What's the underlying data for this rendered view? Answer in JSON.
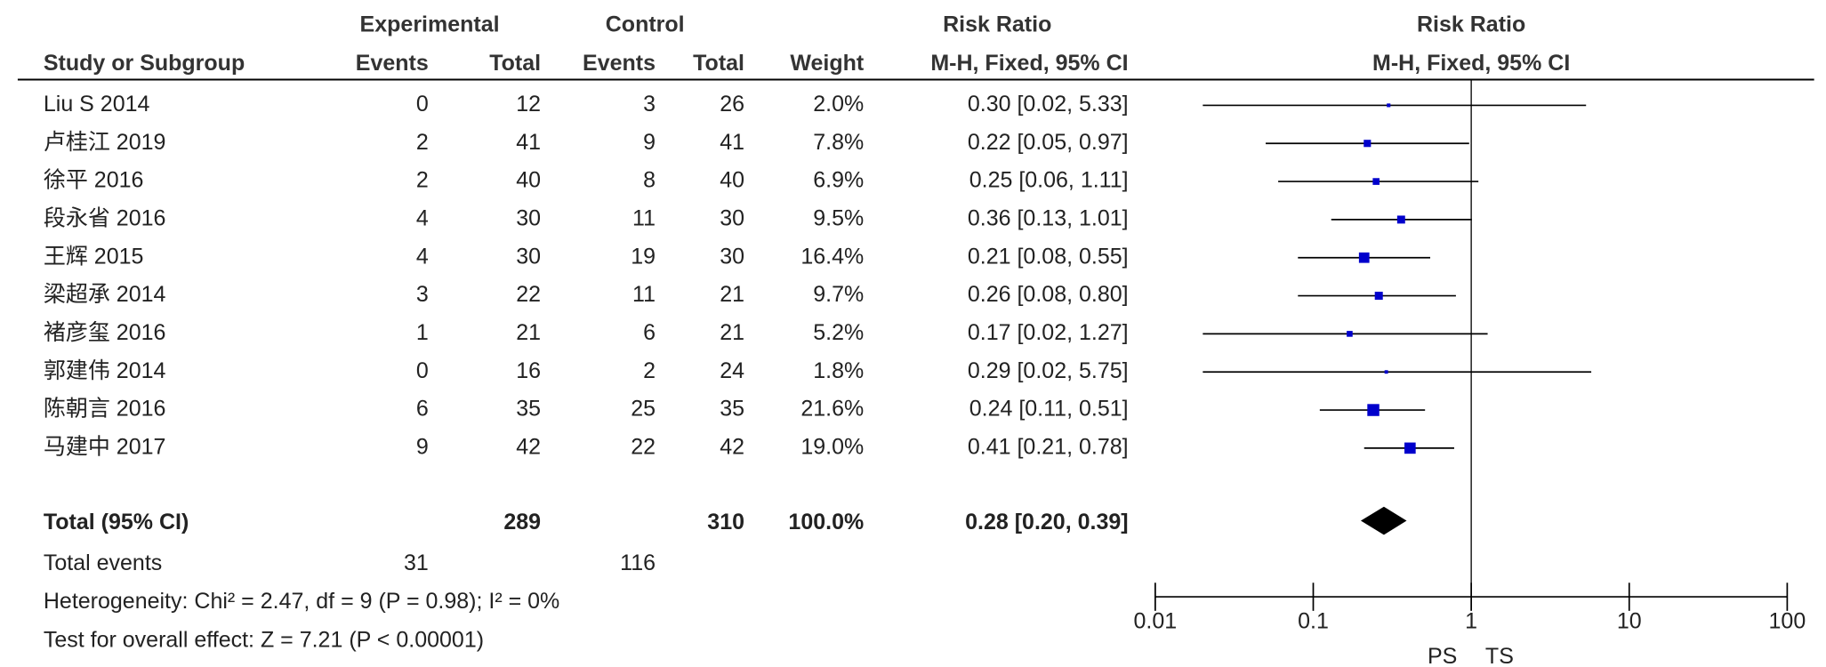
{
  "chart_data": {
    "type": "forest",
    "headers": {
      "experimental": "Experimental",
      "control": "Control",
      "risk_ratio": "Risk Ratio",
      "study": "Study or Subgroup",
      "exp_events": "Events",
      "exp_total": "Total",
      "ctl_events": "Events",
      "ctl_total": "Total",
      "weight": "Weight",
      "method": "M-H, Fixed, 95% CI",
      "plot_title": "Risk Ratio",
      "plot_method": "M-H, Fixed, 95% CI"
    },
    "studies": [
      {
        "name": "Liu S 2014",
        "exp_events": 0,
        "exp_total": 12,
        "ctl_events": 3,
        "ctl_total": 26,
        "weight": 2.0,
        "weight_label": "2.0%",
        "rr": 0.3,
        "lo": 0.02,
        "hi": 5.33,
        "ci_label": "0.30 [0.02, 5.33]"
      },
      {
        "name": "卢桂江 2019",
        "exp_events": 2,
        "exp_total": 41,
        "ctl_events": 9,
        "ctl_total": 41,
        "weight": 7.8,
        "weight_label": "7.8%",
        "rr": 0.22,
        "lo": 0.05,
        "hi": 0.97,
        "ci_label": "0.22 [0.05, 0.97]"
      },
      {
        "name": "徐平 2016",
        "exp_events": 2,
        "exp_total": 40,
        "ctl_events": 8,
        "ctl_total": 40,
        "weight": 6.9,
        "weight_label": "6.9%",
        "rr": 0.25,
        "lo": 0.06,
        "hi": 1.11,
        "ci_label": "0.25 [0.06, 1.11]"
      },
      {
        "name": "段永省 2016",
        "exp_events": 4,
        "exp_total": 30,
        "ctl_events": 11,
        "ctl_total": 30,
        "weight": 9.5,
        "weight_label": "9.5%",
        "rr": 0.36,
        "lo": 0.13,
        "hi": 1.01,
        "ci_label": "0.36 [0.13, 1.01]"
      },
      {
        "name": "王辉 2015",
        "exp_events": 4,
        "exp_total": 30,
        "ctl_events": 19,
        "ctl_total": 30,
        "weight": 16.4,
        "weight_label": "16.4%",
        "rr": 0.21,
        "lo": 0.08,
        "hi": 0.55,
        "ci_label": "0.21 [0.08, 0.55]"
      },
      {
        "name": "梁超承 2014",
        "exp_events": 3,
        "exp_total": 22,
        "ctl_events": 11,
        "ctl_total": 21,
        "weight": 9.7,
        "weight_label": "9.7%",
        "rr": 0.26,
        "lo": 0.08,
        "hi": 0.8,
        "ci_label": "0.26 [0.08, 0.80]"
      },
      {
        "name": "褚彦玺 2016",
        "exp_events": 1,
        "exp_total": 21,
        "ctl_events": 6,
        "ctl_total": 21,
        "weight": 5.2,
        "weight_label": "5.2%",
        "rr": 0.17,
        "lo": 0.02,
        "hi": 1.27,
        "ci_label": "0.17 [0.02, 1.27]"
      },
      {
        "name": "郭建伟 2014",
        "exp_events": 0,
        "exp_total": 16,
        "ctl_events": 2,
        "ctl_total": 24,
        "weight": 1.8,
        "weight_label": "1.8%",
        "rr": 0.29,
        "lo": 0.02,
        "hi": 5.75,
        "ci_label": "0.29 [0.02, 5.75]"
      },
      {
        "name": "陈朝言 2016",
        "exp_events": 6,
        "exp_total": 35,
        "ctl_events": 25,
        "ctl_total": 35,
        "weight": 21.6,
        "weight_label": "21.6%",
        "rr": 0.24,
        "lo": 0.11,
        "hi": 0.51,
        "ci_label": "0.24 [0.11, 0.51]"
      },
      {
        "name": "马建中 2017",
        "exp_events": 9,
        "exp_total": 42,
        "ctl_events": 22,
        "ctl_total": 42,
        "weight": 19.0,
        "weight_label": "19.0%",
        "rr": 0.41,
        "lo": 0.21,
        "hi": 0.78,
        "ci_label": "0.41 [0.21, 0.78]"
      }
    ],
    "total": {
      "name": "Total (95% CI)",
      "exp_total": 289,
      "ctl_total": 310,
      "weight": 100.0,
      "weight_label": "100.0%",
      "rr": 0.28,
      "lo": 0.2,
      "hi": 0.39,
      "ci_label": "0.28 [0.20, 0.39]"
    },
    "total_events": {
      "name": "Total events",
      "exp_events": 31,
      "ctl_events": 116
    },
    "heterogeneity": "Heterogeneity: Chi² = 2.47, df = 9 (P = 0.98); I² = 0%",
    "overall_effect": "Test for overall effect: Z = 7.21 (P < 0.00001)",
    "xlim": [
      0.01,
      100
    ],
    "xticks": [
      0.01,
      0.1,
      1,
      10,
      100
    ],
    "log_scale": true,
    "favors_left": "PS",
    "favors_right": "TS",
    "color": "#0000cc"
  }
}
